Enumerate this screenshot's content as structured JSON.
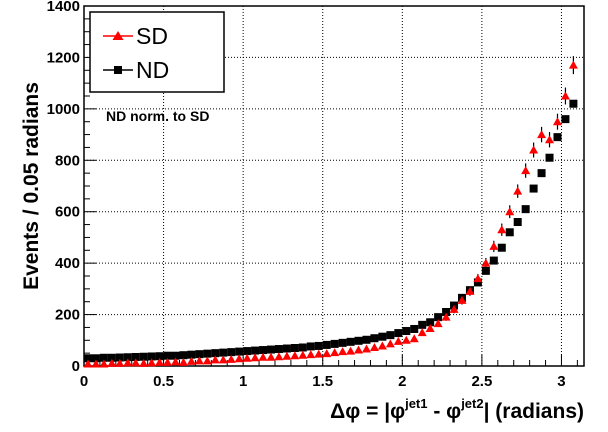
{
  "chart_data": {
    "type": "scatter",
    "xlabel_parts": [
      "Δφ = |φ",
      "jet1",
      " - φ",
      "jet2",
      "| (radians)"
    ],
    "ylabel": "Events / 0.05 radians",
    "annotation": "ND norm. to SD",
    "xlim": [
      0,
      3.14159
    ],
    "ylim": [
      0,
      1400
    ],
    "xticks": [
      0,
      0.5,
      1,
      1.5,
      2,
      2.5,
      3
    ],
    "xtick_labels": [
      "0",
      "0.5",
      "1",
      "1.5",
      "2",
      "2.5",
      "3"
    ],
    "yticks": [
      0,
      200,
      400,
      600,
      800,
      1000,
      1200,
      1400
    ],
    "ytick_labels": [
      "0",
      "200",
      "400",
      "600",
      "800",
      "1000",
      "1200",
      "1400"
    ],
    "grid": true,
    "legend_position": "top-left",
    "series": [
      {
        "name": "SD",
        "marker": "triangle",
        "color": "#ff0000",
        "x": [
          0.025,
          0.075,
          0.125,
          0.175,
          0.225,
          0.275,
          0.325,
          0.375,
          0.425,
          0.475,
          0.525,
          0.575,
          0.625,
          0.675,
          0.725,
          0.775,
          0.825,
          0.875,
          0.925,
          0.975,
          1.025,
          1.075,
          1.125,
          1.175,
          1.225,
          1.275,
          1.325,
          1.375,
          1.425,
          1.475,
          1.525,
          1.575,
          1.625,
          1.675,
          1.725,
          1.775,
          1.825,
          1.875,
          1.925,
          1.975,
          2.025,
          2.075,
          2.125,
          2.175,
          2.225,
          2.275,
          2.325,
          2.375,
          2.425,
          2.475,
          2.525,
          2.575,
          2.625,
          2.675,
          2.725,
          2.775,
          2.825,
          2.875,
          2.925,
          2.975,
          3.025,
          3.075
        ],
        "values": [
          8,
          8,
          8,
          10,
          10,
          12,
          12,
          10,
          12,
          14,
          14,
          16,
          14,
          18,
          20,
          20,
          24,
          24,
          26,
          28,
          30,
          32,
          34,
          34,
          36,
          38,
          40,
          42,
          44,
          46,
          48,
          52,
          56,
          58,
          62,
          66,
          72,
          78,
          86,
          96,
          100,
          106,
          130,
          146,
          165,
          190,
          220,
          255,
          290,
          340,
          400,
          465,
          530,
          600,
          680,
          760,
          840,
          900,
          880,
          950,
          1050,
          1170
        ],
        "errors": [
          5,
          5,
          5,
          5,
          5,
          5,
          5,
          5,
          5,
          5,
          5,
          5,
          5,
          5,
          5,
          5,
          5,
          5,
          6,
          6,
          6,
          6,
          6,
          6,
          6,
          6,
          7,
          7,
          7,
          7,
          7,
          7,
          8,
          8,
          8,
          8,
          9,
          9,
          9,
          10,
          10,
          11,
          11,
          12,
          13,
          14,
          15,
          16,
          17,
          18,
          20,
          22,
          24,
          25,
          26,
          28,
          29,
          30,
          30,
          31,
          33,
          35
        ]
      },
      {
        "name": "ND",
        "marker": "square",
        "color": "#000000",
        "x": [
          0.025,
          0.075,
          0.125,
          0.175,
          0.225,
          0.275,
          0.325,
          0.375,
          0.425,
          0.475,
          0.525,
          0.575,
          0.625,
          0.675,
          0.725,
          0.775,
          0.825,
          0.875,
          0.925,
          0.975,
          1.025,
          1.075,
          1.125,
          1.175,
          1.225,
          1.275,
          1.325,
          1.375,
          1.425,
          1.475,
          1.525,
          1.575,
          1.625,
          1.675,
          1.725,
          1.775,
          1.825,
          1.875,
          1.925,
          1.975,
          2.025,
          2.075,
          2.125,
          2.175,
          2.225,
          2.275,
          2.325,
          2.375,
          2.425,
          2.475,
          2.525,
          2.575,
          2.625,
          2.675,
          2.725,
          2.775,
          2.825,
          2.875,
          2.925,
          2.975,
          3.025,
          3.075
        ],
        "values": [
          30,
          30,
          32,
          32,
          33,
          34,
          35,
          36,
          37,
          38,
          40,
          40,
          42,
          44,
          46,
          48,
          50,
          52,
          54,
          56,
          58,
          60,
          62,
          64,
          66,
          68,
          70,
          72,
          76,
          78,
          82,
          86,
          90,
          94,
          98,
          102,
          108,
          114,
          120,
          128,
          136,
          144,
          160,
          170,
          190,
          210,
          235,
          265,
          295,
          325,
          370,
          410,
          460,
          520,
          560,
          610,
          690,
          750,
          810,
          890,
          960,
          1020
        ],
        "errors": []
      }
    ]
  }
}
